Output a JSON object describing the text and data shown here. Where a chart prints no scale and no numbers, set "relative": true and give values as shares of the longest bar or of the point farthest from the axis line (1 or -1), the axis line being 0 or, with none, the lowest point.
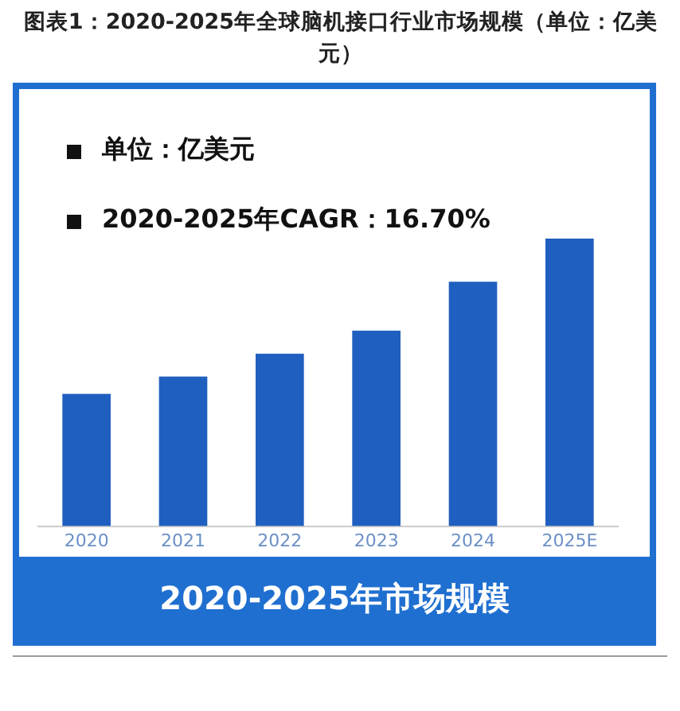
{
  "chart_data": {
    "type": "bar",
    "title": "图表1：2020-2025年全球脑机接口行业市场规模（单位：亿美元）",
    "subtitle": "2020-2025年市场规模",
    "annotations": [
      "单位：亿美元",
      "2020-2025年CAGR：16.70%"
    ],
    "categories": [
      "2020",
      "2021",
      "2022",
      "2023",
      "2024",
      "2025E"
    ],
    "values": [
      0.46,
      0.52,
      0.6,
      0.68,
      0.85,
      1
    ],
    "color": "#1f5fbf",
    "relative": true,
    "legend": false
  }
}
